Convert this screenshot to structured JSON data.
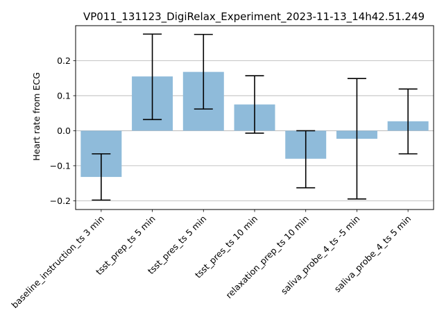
{
  "chart_data": {
    "type": "bar",
    "title": "VP011_131123_DigiRelax_Experiment_2023-11-13_14h42.51.249",
    "xlabel": "",
    "ylabel": "Heart rate from ECG",
    "categories": [
      "baseline_instruction_ts 3 min",
      "tsst_prep_ts 5 min",
      "tsst_pres_ts 5 min",
      "tsst_pres_ts 10 min",
      "relaxation_prep_ts 10 min",
      "saliva_probe_4_ts -5 min",
      "saliva_probe_4_ts 5 min"
    ],
    "values": [
      -0.132,
      0.155,
      0.168,
      0.075,
      -0.08,
      -0.023,
      0.027
    ],
    "error_low": [
      -0.198,
      0.032,
      0.062,
      -0.007,
      -0.163,
      -0.195,
      -0.066
    ],
    "error_high": [
      -0.066,
      0.276,
      0.275,
      0.157,
      0.0,
      0.149,
      0.119
    ],
    "ylim": [
      -0.225,
      0.3
    ],
    "yticks": [
      -0.2,
      -0.1,
      0.0,
      0.1,
      0.2
    ],
    "ytick_labels": [
      "−0.2",
      "−0.1",
      "0.0",
      "0.1",
      "0.2"
    ],
    "grid": "horizontal",
    "bar_color": "#8fbbda",
    "error_color": "#000000"
  }
}
